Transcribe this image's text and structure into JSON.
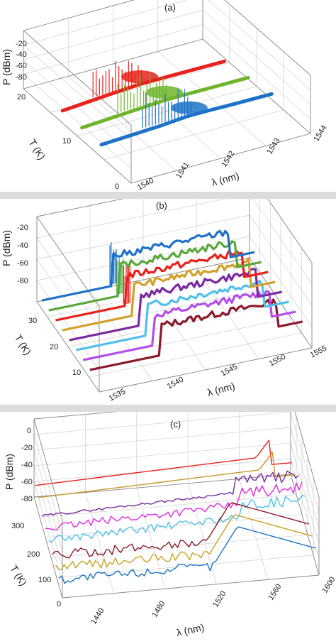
{
  "chart_data": [
    {
      "type": "line",
      "panel_label": "(a)",
      "zlabel": "P (dBm)",
      "ylabel": "T (K)",
      "xlabel": "λ (nm)",
      "z_ticks": [
        "-20",
        "-40",
        "-60",
        "-80"
      ],
      "y_ticks": [
        "20",
        "10",
        "0"
      ],
      "x_ticks": [
        "1540",
        "1541",
        "1542",
        "1543",
        "1544"
      ],
      "xlim": [
        1540,
        1544
      ],
      "ylim": [
        0,
        20
      ],
      "zlim": [
        -90,
        -20
      ],
      "series": [
        {
          "T": 20,
          "color": "#e8211c",
          "x": [
            1540.0,
            1541.2,
            1541.8,
            1542.3,
            1543.0,
            1543.8
          ],
          "y": [
            -82,
            -68,
            -62,
            -62,
            -63,
            -64
          ]
        },
        {
          "T": 15,
          "color": "#6fb52c",
          "x": [
            1540.0,
            1541.3,
            1541.9,
            1542.4,
            1543.0,
            1543.9
          ],
          "y": [
            -82,
            -70,
            -64,
            -64,
            -65,
            -66
          ]
        },
        {
          "T": 10,
          "color": "#1e73c8",
          "x": [
            1540.0,
            1541.4,
            1542.0,
            1542.5,
            1543.0,
            1544.0
          ],
          "y": [
            -82,
            -72,
            -64,
            -64,
            -66,
            -68
          ]
        }
      ]
    },
    {
      "type": "line",
      "panel_label": "(b)",
      "zlabel": "P (dBm)",
      "ylabel": "T (K)",
      "xlabel": "λ (nm)",
      "z_ticks": [
        "-20",
        "-40",
        "-60",
        "-80"
      ],
      "y_ticks": [
        "30",
        "20",
        "10"
      ],
      "x_ticks": [
        "1535",
        "1540",
        "1545",
        "1550",
        "1555"
      ],
      "xlim": [
        1535,
        1555
      ],
      "ylim": [
        5,
        40
      ],
      "zlim": [
        -90,
        -20
      ],
      "series": [
        {
          "T": 40,
          "color": "#8b1a2b"
        },
        {
          "T": 35,
          "color": "#b44fe8"
        },
        {
          "T": 30,
          "color": "#4fc0ec"
        },
        {
          "T": 25,
          "color": "#7b2aa0"
        },
        {
          "T": 20,
          "color": "#d4a02a"
        },
        {
          "T": 15,
          "color": "#e8211c"
        },
        {
          "T": 10,
          "color": "#5aa83c"
        },
        {
          "T": 5,
          "color": "#1e73c8"
        }
      ]
    },
    {
      "type": "line",
      "panel_label": "(c)",
      "zlabel": "P (dBm)",
      "ylabel": "T (K)",
      "xlabel": "λ (nm)",
      "z_ticks": [
        "0",
        "-20",
        "-40",
        "-60",
        "-80"
      ],
      "y_ticks": [
        "300",
        "200",
        "100",
        "0"
      ],
      "x_ticks": [
        "1440",
        "1480",
        "1520",
        "1560",
        "1600"
      ],
      "xlim": [
        1420,
        1600
      ],
      "ylim": [
        0,
        300
      ],
      "zlim": [
        -90,
        0
      ],
      "series": [
        {
          "T": 300,
          "color": "#e8211c"
        },
        {
          "T": 270,
          "color": "#c8962a"
        },
        {
          "T": 230,
          "color": "#7b2aa0"
        },
        {
          "T": 190,
          "color": "#e02ae0"
        },
        {
          "T": 160,
          "color": "#4fc0ec"
        },
        {
          "T": 120,
          "color": "#8b1a2b"
        },
        {
          "T": 80,
          "color": "#c8a020"
        },
        {
          "T": 40,
          "color": "#1e73c8"
        }
      ]
    }
  ]
}
